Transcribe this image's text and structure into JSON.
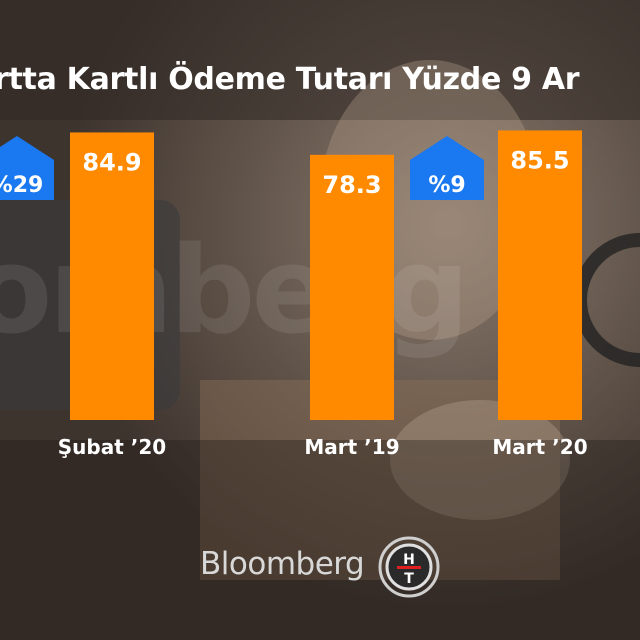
{
  "title": "rtta Kartlı Ödeme Tutarı Yüzde 9 Ar",
  "watermark": "omberg (",
  "footer": {
    "brand": "Bloomberg",
    "logo_letters": "HT"
  },
  "colors": {
    "bar": "#ff8a00",
    "badge": "#1a78f0",
    "background": "#4a3f38",
    "text": "#ffffff"
  },
  "chart_data": {
    "type": "bar",
    "categories": [
      "Şubat ’20",
      "Mart ’19",
      "Mart ’20"
    ],
    "values": [
      84.9,
      78.3,
      85.5
    ],
    "badges": [
      "%29",
      "%9"
    ],
    "title": "rtta Kartlı Ödeme Tutarı Yüzde 9 Ar",
    "xlabel": "",
    "ylabel": "",
    "grid": false,
    "legend": "none"
  }
}
